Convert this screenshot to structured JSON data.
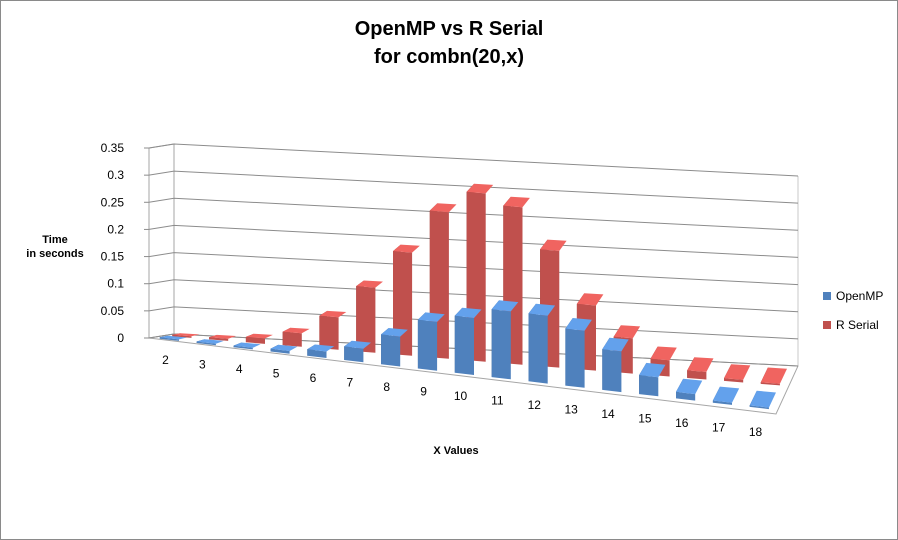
{
  "chart": {
    "title_line1": "OpenMP vs R Serial",
    "title_line2": "for combn(20,x)",
    "ylabel_line1": "Time",
    "ylabel_line2": "in seconds",
    "xlabel": "X Values"
  },
  "legend": [
    {
      "name": "OpenMP",
      "color": "#4f81bd"
    },
    {
      "name": "R Serial",
      "color": "#c0504d"
    }
  ],
  "chart_data": {
    "type": "bar",
    "view": "3d-perspective",
    "title": "OpenMP vs R Serial for combn(20,x)",
    "xlabel": "X Values",
    "ylabel": "Time in seconds",
    "categories": [
      "2",
      "3",
      "4",
      "5",
      "6",
      "7",
      "8",
      "9",
      "10",
      "11",
      "12",
      "13",
      "14",
      "15",
      "16",
      "17",
      "18"
    ],
    "yticks": [
      "0",
      "0.05",
      "0.1",
      "0.15",
      "0.2",
      "0.25",
      "0.3",
      "0.35"
    ],
    "ylim": [
      0,
      0.35
    ],
    "grid": true,
    "legend_position": "right",
    "series": [
      {
        "name": "OpenMP",
        "color": "#4f81bd",
        "values": [
          0.001,
          0.002,
          0.003,
          0.005,
          0.012,
          0.025,
          0.055,
          0.09,
          0.105,
          0.125,
          0.125,
          0.105,
          0.075,
          0.035,
          0.012,
          0.004,
          0.002
        ]
      },
      {
        "name": "R Serial",
        "color": "#c0504d",
        "values": [
          0.003,
          0.004,
          0.01,
          0.025,
          0.06,
          0.12,
          0.19,
          0.27,
          0.31,
          0.29,
          0.215,
          0.12,
          0.065,
          0.03,
          0.014,
          0.005,
          0.003
        ]
      }
    ]
  }
}
